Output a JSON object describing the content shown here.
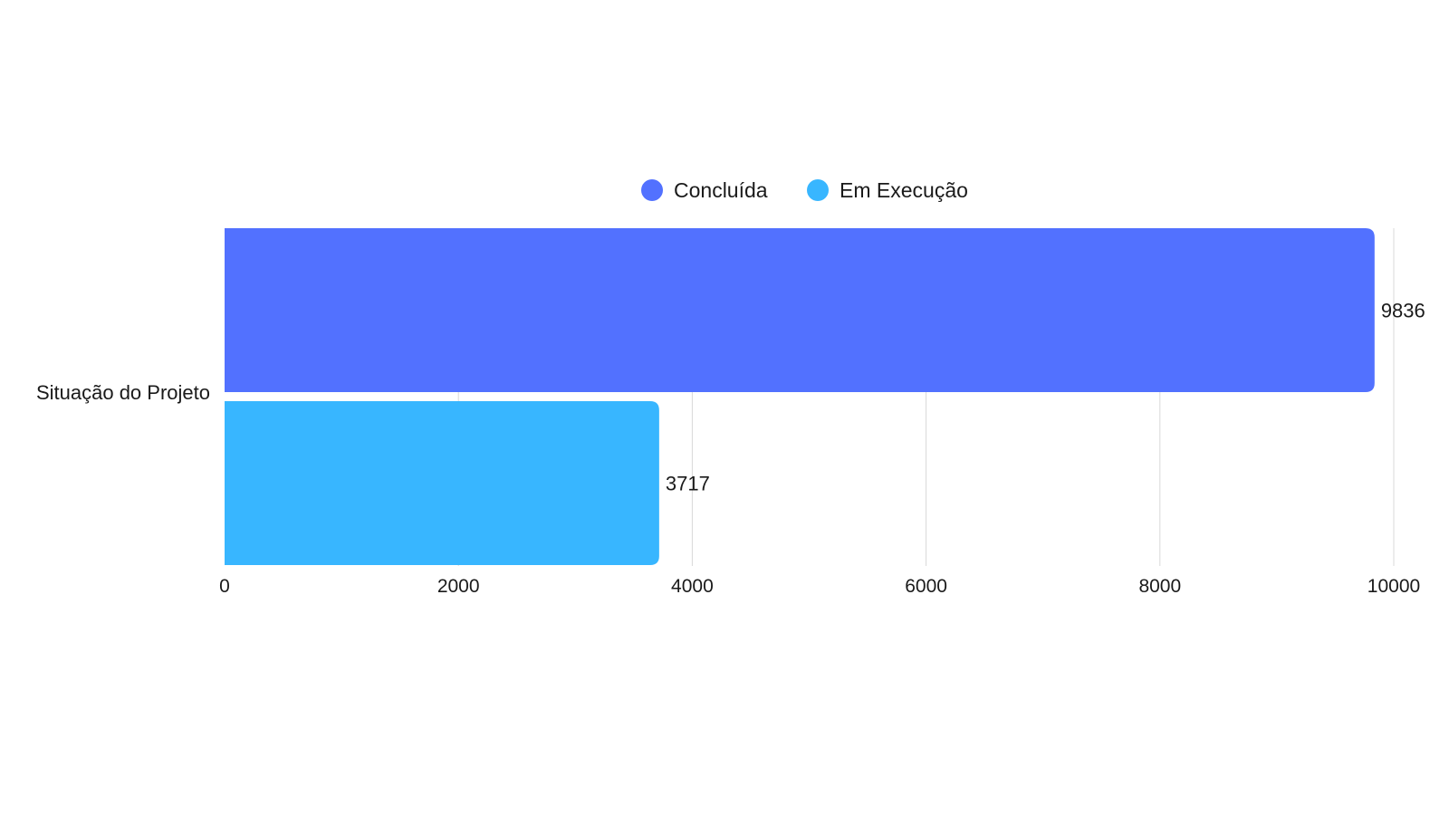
{
  "chart_data": {
    "type": "bar",
    "orientation": "horizontal",
    "categories": [
      "Situação do Projeto"
    ],
    "series": [
      {
        "name": "Concluída",
        "values": [
          9836
        ],
        "color": "#5271ff"
      },
      {
        "name": "Em Execução",
        "values": [
          3717
        ],
        "color": "#38b6ff"
      }
    ],
    "xlim": [
      0,
      10000
    ],
    "x_ticks": [
      0,
      2000,
      4000,
      6000,
      8000,
      10000
    ],
    "tick_labels": [
      "0",
      "2000",
      "4000",
      "6000",
      "8000",
      "10000"
    ],
    "value_labels": [
      "9836",
      "3717"
    ],
    "grid": true,
    "legend_position": "top-center",
    "title": "",
    "xlabel": "",
    "ylabel": ""
  }
}
